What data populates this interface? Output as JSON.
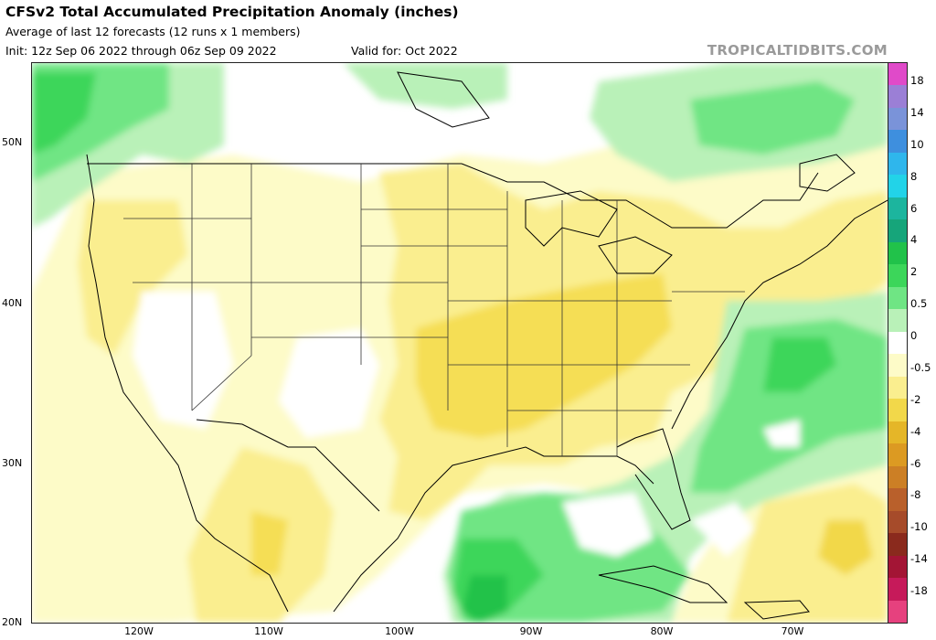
{
  "header": {
    "title": "CFSv2 Total Accumulated Precipitation Anomaly (inches)",
    "subtitle": "Average of last 12 forecasts (12 runs x 1 members)",
    "init": "Init: 12z Sep 06 2022 through 06z Sep 09 2022",
    "valid": "Valid for: Oct 2022",
    "brand": "TROPICALTIDBITS.COM"
  },
  "map": {
    "lat_labels": [
      "50N",
      "40N",
      "30N",
      "20N"
    ],
    "lon_labels": [
      "120W",
      "110W",
      "100W",
      "90W",
      "80W",
      "70W"
    ]
  },
  "colorbar": {
    "labels": [
      "18",
      "14",
      "10",
      "8",
      "6",
      "4",
      "2",
      "0.5",
      "0",
      "-0.5",
      "-2",
      "-4",
      "-6",
      "-8",
      "-10",
      "-14",
      "-18"
    ],
    "colors": [
      "#e04ac9",
      "#9b7fd6",
      "#7a93d9",
      "#3e8fde",
      "#2fb6ec",
      "#22d3e8",
      "#1cb59e",
      "#16a57a",
      "#21c24a",
      "#3cd65a",
      "#6fe584",
      "#b9f1b8",
      "#ffffff",
      "#fdfbc8",
      "#faee8f",
      "#f2d84a",
      "#e5b628",
      "#dc9a22",
      "#cc7f25",
      "#b9602b",
      "#a64b2a",
      "#8a2a1d",
      "#a31535",
      "#c61a5a",
      "#e6417e"
    ]
  }
}
